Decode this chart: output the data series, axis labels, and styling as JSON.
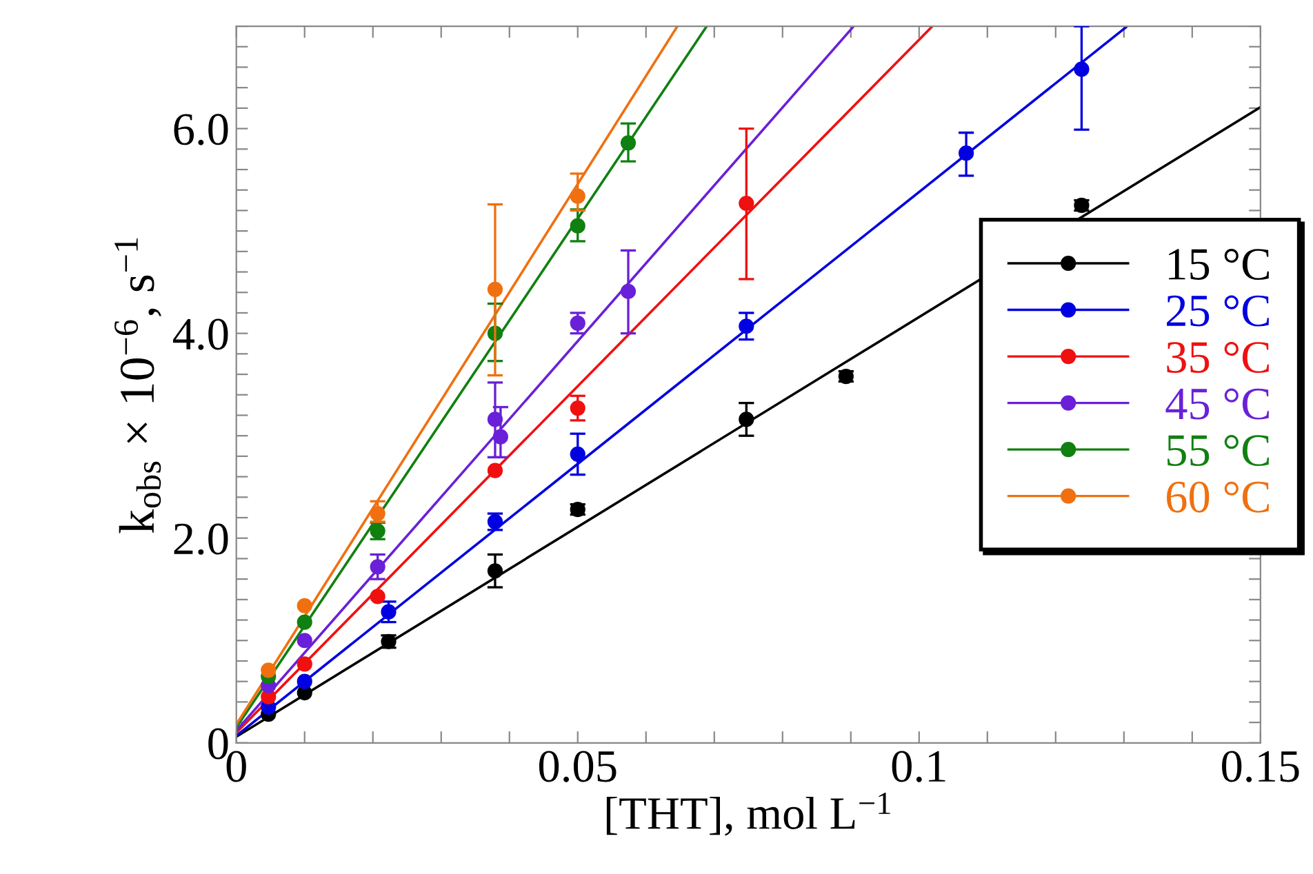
{
  "chart_data": {
    "type": "scatter",
    "xlabel": "[THT], mol L$^{−1}$",
    "ylabel": "k$_{obs}$ × 10$^{−6}$, s$^{−1}$",
    "xlim": [
      0,
      0.15
    ],
    "ylim": [
      0,
      7.0
    ],
    "xticks": [
      0,
      {
        "value": 0.01,
        "label": null
      },
      {
        "value": 0.02,
        "label": null
      },
      {
        "value": 0.03,
        "label": null
      },
      {
        "value": 0.04,
        "label": null
      },
      0.05,
      {
        "value": 0.06,
        "label": null
      },
      {
        "value": 0.07,
        "label": null
      },
      {
        "value": 0.08,
        "label": null
      },
      {
        "value": 0.09,
        "label": null
      },
      0.1,
      {
        "value": 0.11,
        "label": null
      },
      {
        "value": 0.12,
        "label": null
      },
      {
        "value": 0.13,
        "label": null
      },
      {
        "value": 0.14,
        "label": null
      },
      0.15
    ],
    "yticks": [
      0,
      {
        "value": 0.2,
        "label": null
      },
      {
        "value": 0.4,
        "label": null
      },
      {
        "value": 0.6,
        "label": null
      },
      {
        "value": 0.8,
        "label": null
      },
      {
        "value": 1.0,
        "label": null
      },
      {
        "value": 1.2,
        "label": null
      },
      {
        "value": 1.4,
        "label": null
      },
      {
        "value": 1.6,
        "label": null
      },
      {
        "value": 1.8,
        "label": null
      },
      {
        "value": 2.0,
        "label": "2.0"
      },
      {
        "value": 2.2,
        "label": null
      },
      {
        "value": 2.4,
        "label": null
      },
      {
        "value": 2.6,
        "label": null
      },
      {
        "value": 2.8,
        "label": null
      },
      {
        "value": 3.0,
        "label": null
      },
      {
        "value": 3.2,
        "label": null
      },
      {
        "value": 3.4,
        "label": null
      },
      {
        "value": 3.6,
        "label": null
      },
      {
        "value": 3.8,
        "label": null
      },
      {
        "value": 4.0,
        "label": "4.0"
      },
      {
        "value": 4.2,
        "label": null
      },
      {
        "value": 4.4,
        "label": null
      },
      {
        "value": 4.6,
        "label": null
      },
      {
        "value": 4.8,
        "label": null
      },
      {
        "value": 5.0,
        "label": null
      },
      {
        "value": 5.2,
        "label": null
      },
      {
        "value": 5.4,
        "label": null
      },
      {
        "value": 5.6,
        "label": null
      },
      {
        "value": 5.8,
        "label": null
      },
      {
        "value": 6.0,
        "label": "6.0"
      },
      {
        "value": 6.2,
        "label": null
      },
      {
        "value": 6.4,
        "label": null
      },
      {
        "value": 6.6,
        "label": null
      },
      {
        "value": 6.8,
        "label": null
      },
      {
        "value": 7.0,
        "label": null
      }
    ],
    "marker": "circle",
    "grid": false,
    "legend": "right",
    "series": [
      {
        "type": "line",
        "marker": "none",
        "color": "#000000",
        "x": [
          0,
          0.15
        ],
        "values": [
          0.06,
          6.21
        ]
      },
      {
        "type": "line",
        "marker": "none",
        "color": "#0000e0",
        "x": [
          0,
          0.1303
        ],
        "values": [
          0.07,
          6.99
        ]
      },
      {
        "type": "line",
        "marker": "none",
        "color": "#f01010",
        "x": [
          0,
          0.1018
        ],
        "values": [
          0.1,
          6.99
        ]
      },
      {
        "type": "line",
        "marker": "none",
        "color": "#6a20d8",
        "x": [
          0,
          0.0903
        ],
        "values": [
          0.12,
          6.99
        ]
      },
      {
        "type": "line",
        "marker": "none",
        "color": "#108010",
        "x": [
          0,
          0.0689
        ],
        "values": [
          0.15,
          7.0
        ]
      },
      {
        "type": "line",
        "marker": "none",
        "color": "#f07010",
        "x": [
          0,
          0.0646
        ],
        "values": [
          0.18,
          7.0
        ]
      },
      {
        "name": "15 °C",
        "color": "#000000",
        "x": [
          0.0047,
          0.01,
          0.0223,
          0.0379,
          0.05,
          0.0747,
          0.0893,
          0.1238
        ],
        "values": [
          0.28,
          0.49,
          0.99,
          1.68,
          2.28,
          3.16,
          3.58,
          5.25
        ],
        "errors": [
          null,
          null,
          0.06,
          0.16,
          0.05,
          0.16,
          0.05,
          0.05
        ]
      },
      {
        "name": "25 °C",
        "color": "#0000e0",
        "x": [
          0.0047,
          0.01,
          0.0223,
          0.0379,
          0.05,
          0.0747,
          0.1069,
          0.1238
        ],
        "values": [
          0.35,
          0.6,
          1.28,
          2.16,
          2.82,
          4.07,
          5.76,
          6.58
        ],
        "errors": [
          null,
          null,
          0.1,
          0.08,
          0.2,
          0.13,
          [
            5.54,
            5.96
          ],
          [
            5.99,
            7.0
          ]
        ]
      },
      {
        "name": "35 °C",
        "color": "#f01010",
        "x": [
          0.0047,
          0.01,
          0.0207,
          0.0379,
          0.05,
          0.0747
        ],
        "values": [
          0.45,
          0.77,
          1.43,
          2.66,
          3.27,
          5.27
        ],
        "errors": [
          null,
          null,
          null,
          null,
          0.12,
          [
            4.53,
            6.0
          ]
        ]
      },
      {
        "name": "45 °C",
        "color": "#6a20d8",
        "x": [
          0.0047,
          0.01,
          0.0207,
          0.0379,
          0.0387,
          0.05,
          0.0574
        ],
        "values": [
          0.56,
          1.0,
          1.72,
          3.16,
          2.99,
          4.1,
          4.41
        ],
        "errors": [
          null,
          null,
          0.12,
          [
            2.79,
            3.52
          ],
          [
            2.79,
            3.28
          ],
          0.1,
          [
            4.0,
            4.81
          ]
        ]
      },
      {
        "name": "55 °C",
        "color": "#108010",
        "x": [
          0.0047,
          0.01,
          0.0207,
          0.0379,
          0.05,
          0.0574
        ],
        "values": [
          0.65,
          1.18,
          2.07,
          4.0,
          5.05,
          5.86
        ],
        "errors": [
          null,
          null,
          0.08,
          [
            3.73,
            4.29
          ],
          [
            4.9,
            5.21
          ],
          [
            5.68,
            6.05
          ]
        ]
      },
      {
        "name": "60 °C",
        "color": "#f07010",
        "x": [
          0.0047,
          0.01,
          0.0207,
          0.0379,
          0.05
        ],
        "values": [
          0.71,
          1.34,
          2.24,
          4.43,
          5.34
        ],
        "errors": [
          null,
          null,
          [
            2.16,
            2.36
          ],
          [
            3.59,
            5.26
          ],
          [
            5.2,
            5.56
          ]
        ]
      }
    ]
  }
}
